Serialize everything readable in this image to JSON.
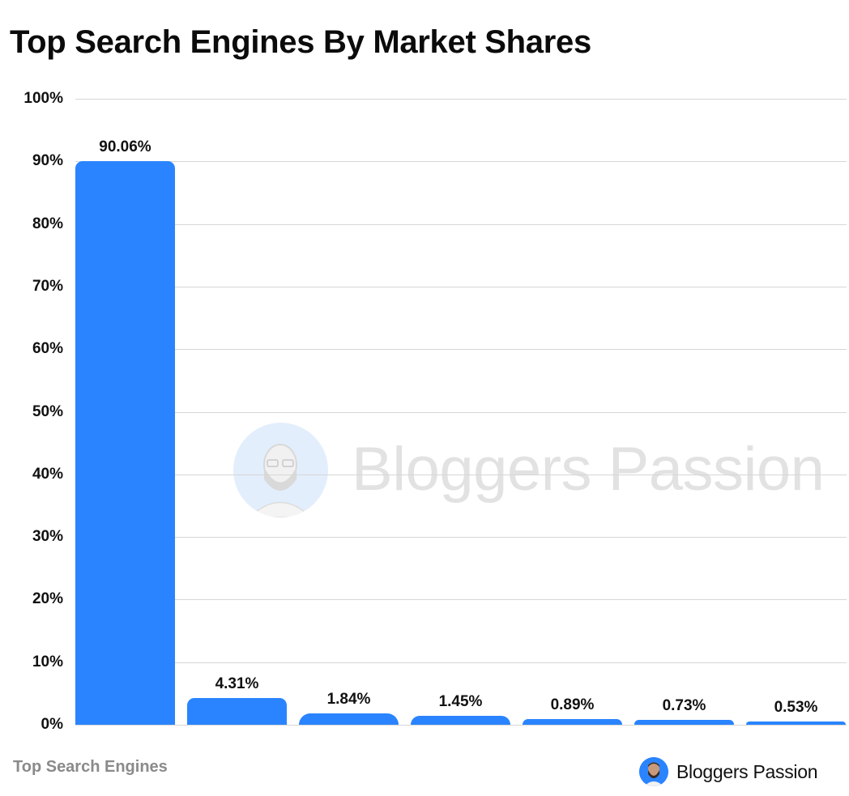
{
  "chart_data": {
    "type": "bar",
    "title": "Top Search Engines By Market Shares",
    "xlabel": "Top Search Engines",
    "ylabel": "",
    "ylim": [
      0,
      100
    ],
    "yticks": [
      "0%",
      "10%",
      "20%",
      "30%",
      "40%",
      "50%",
      "60%",
      "70%",
      "80%",
      "90%",
      "100%"
    ],
    "grid": true,
    "legend": null,
    "categories": [
      "",
      "",
      "",
      "",
      "",
      "",
      ""
    ],
    "values": [
      90.06,
      4.31,
      1.84,
      1.45,
      0.89,
      0.73,
      0.53
    ],
    "value_labels": [
      "90.06%",
      "4.31%",
      "1.84%",
      "1.45%",
      "0.89%",
      "0.73%",
      "0.53%"
    ],
    "bar_color": "#2A84FF"
  },
  "header": {
    "title": "Top Search Engines By Market Shares"
  },
  "footer": {
    "xlabel": "Top Search Engines",
    "brand": "Bloggers Passion"
  },
  "watermark": {
    "text": "Bloggers Passion"
  },
  "colors": {
    "bar": "#2A84FF",
    "grid": "#D6D6D6",
    "watermark": "#E2E2E2",
    "xlabel": "#8A8A8A"
  }
}
